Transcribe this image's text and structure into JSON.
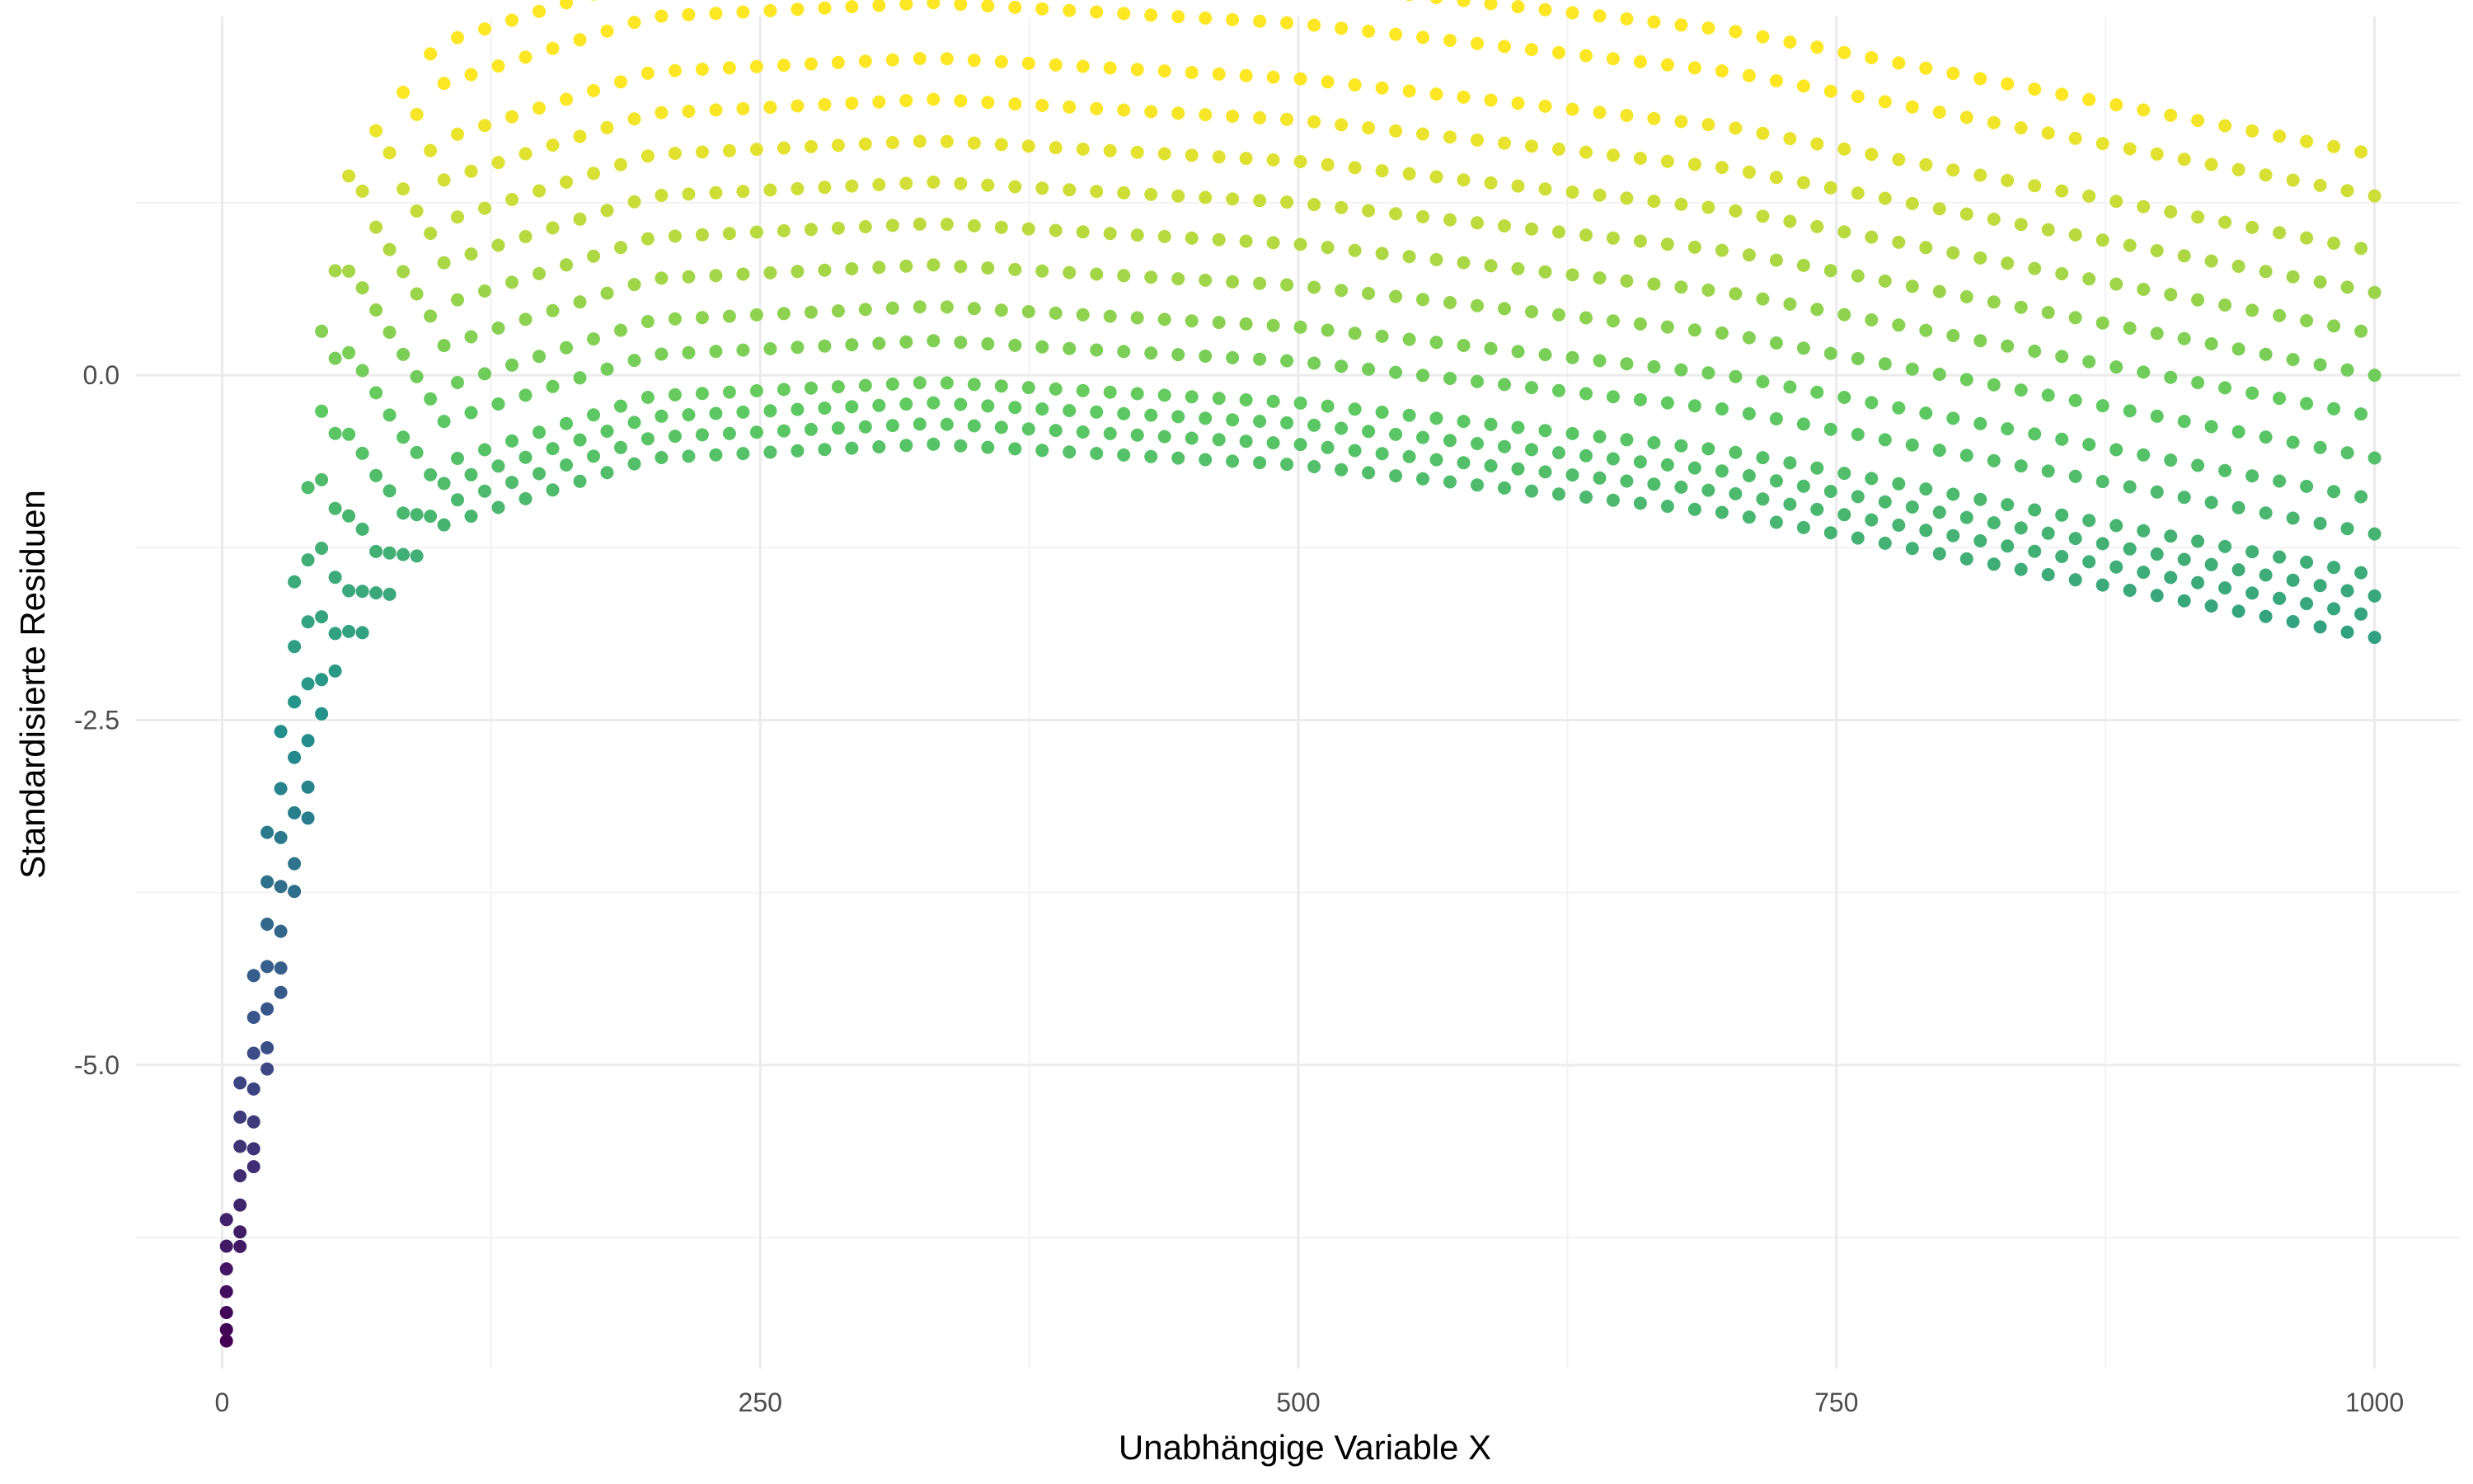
{
  "chart_data": {
    "type": "scatter",
    "title": "",
    "xlabel": "Unabhängige Variable X",
    "ylabel": "Standardisierte Residuen",
    "xlim": [
      -40,
      1040
    ],
    "ylim": [
      -7.2,
      2.6
    ],
    "x_ticks": [
      0,
      250,
      500,
      750,
      1000
    ],
    "x_tick_labels": [
      "0",
      "250",
      "500",
      "750",
      "1000"
    ],
    "y_ticks": [
      -5.0,
      -2.5,
      0.0
    ],
    "y_tick_labels": [
      "-5.0",
      "-2.5",
      "0.0"
    ],
    "grid": true,
    "legend": "none",
    "color_scale": "viridis",
    "color_range": [
      -7.0,
      2.0
    ],
    "colors": {
      "viridis_low": "#440154",
      "viridis_mid": "#21908c",
      "viridis_high": "#fde725",
      "grid": "#ebebeb",
      "tick_text": "#4d4d4d"
    },
    "series": [
      {
        "pattern": "dense bands of residuals; each band rises steeply near x=0, peaks near x=330 and declines toward x=1000",
        "x_range": [
          2,
          1000
        ],
        "band_count": 14,
        "band_base": {
          "x": [
            2,
            50,
            100,
            200,
            330,
            500,
            700,
            1000
          ],
          "y": [
            -7.0,
            -2.2,
            -1.1,
            -0.6,
            -0.5,
            -0.65,
            -1.0,
            -1.9
          ]
        },
        "band_offsets": [
          0.0,
          0.15,
          0.3,
          0.45,
          0.75,
          1.0,
          1.3,
          1.6,
          1.9,
          2.2,
          2.5,
          2.8,
          3.2,
          3.5
        ]
      }
    ]
  }
}
